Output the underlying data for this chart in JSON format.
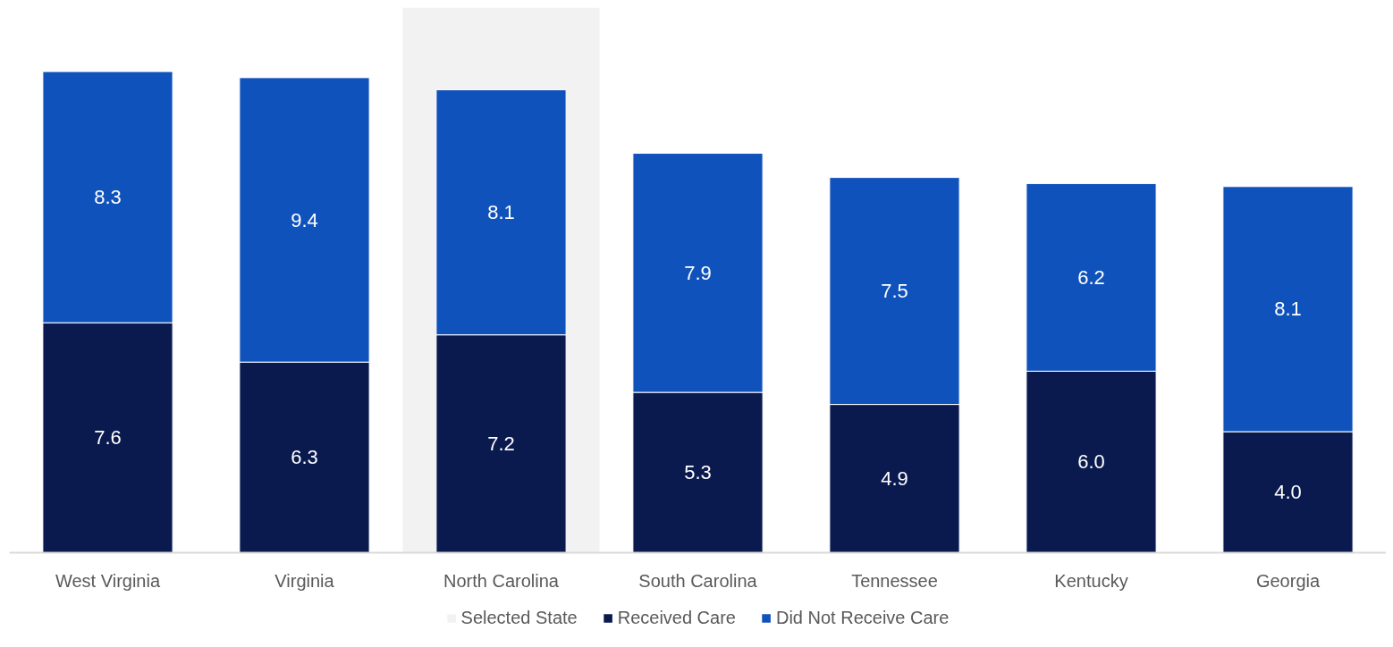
{
  "chart_data": {
    "type": "bar",
    "stacked": true,
    "legend": "bottom",
    "categories": [
      "West Virginia",
      "Virginia",
      "North Carolina",
      "South Carolina",
      "Tennessee",
      "Kentucky",
      "Georgia"
    ],
    "series": [
      {
        "name": "Received Care",
        "color": "#0a1a4e",
        "values": [
          7.6,
          6.3,
          7.2,
          5.3,
          4.9,
          6.0,
          4.0
        ],
        "value_labels": [
          "7.6",
          "6.3",
          "7.2",
          "5.3",
          "4.9",
          "6.0",
          "4.0"
        ]
      },
      {
        "name": "Did Not Receive Care",
        "color": "#1052bb",
        "values": [
          8.3,
          9.4,
          8.1,
          7.9,
          7.5,
          6.2,
          8.1
        ],
        "value_labels": [
          "8.3",
          "9.4",
          "8.1",
          "7.9",
          "7.5",
          "6.2",
          "8.1"
        ]
      }
    ],
    "bands": [
      {
        "axis": "x",
        "from": "North Carolina",
        "to": "North Carolina",
        "label": "Selected State",
        "color": "#f2f2f2"
      }
    ]
  }
}
